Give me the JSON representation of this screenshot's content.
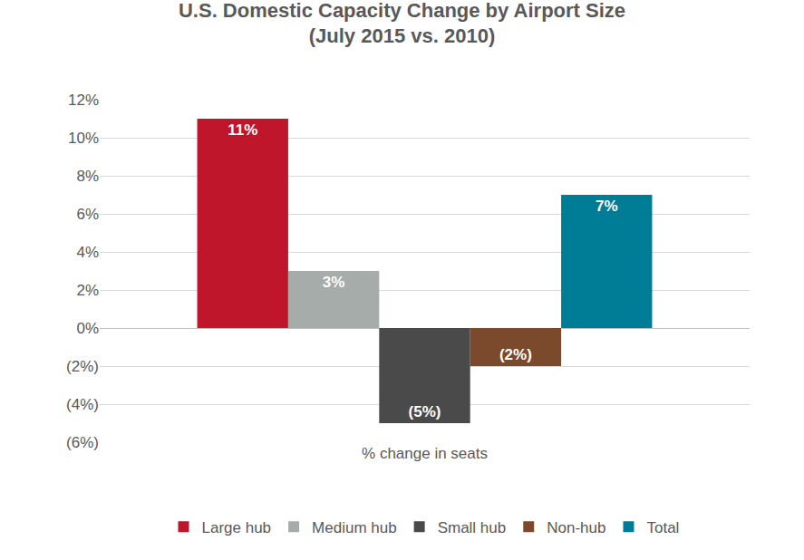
{
  "chart_data": {
    "type": "bar",
    "title": "U.S. Domestic Capacity Change by Airport Size\n(July 2015 vs. 2010)",
    "categories": [
      "% change in seats"
    ],
    "series": [
      {
        "name": "Large hub",
        "color": "#c0162b",
        "values": [
          11
        ],
        "value_labels": [
          "11%"
        ]
      },
      {
        "name": "Medium hub",
        "color": "#a5acaa",
        "values": [
          3
        ],
        "value_labels": [
          "3%"
        ]
      },
      {
        "name": "Small hub",
        "color": "#4a4a4a",
        "values": [
          -5
        ],
        "value_labels": [
          "(5%)"
        ]
      },
      {
        "name": "Non-hub",
        "color": "#7b4a2d",
        "values": [
          -2
        ],
        "value_labels": [
          "(2%)"
        ]
      },
      {
        "name": "Total",
        "color": "#007d96",
        "values": [
          7
        ],
        "value_labels": [
          "7%"
        ]
      }
    ],
    "ylim": [
      -6,
      12
    ],
    "yticks": [
      {
        "value": -6,
        "label": "(6%)"
      },
      {
        "value": -4,
        "label": "(4%)"
      },
      {
        "value": -2,
        "label": "(2%)"
      },
      {
        "value": 0,
        "label": "0%"
      },
      {
        "value": 2,
        "label": "2%"
      },
      {
        "value": 4,
        "label": "4%"
      },
      {
        "value": 6,
        "label": "6%"
      },
      {
        "value": 8,
        "label": "8%"
      },
      {
        "value": 10,
        "label": "10%"
      },
      {
        "value": 12,
        "label": "12%"
      }
    ],
    "grid": true,
    "legend": "bottom",
    "data_labels": true
  }
}
